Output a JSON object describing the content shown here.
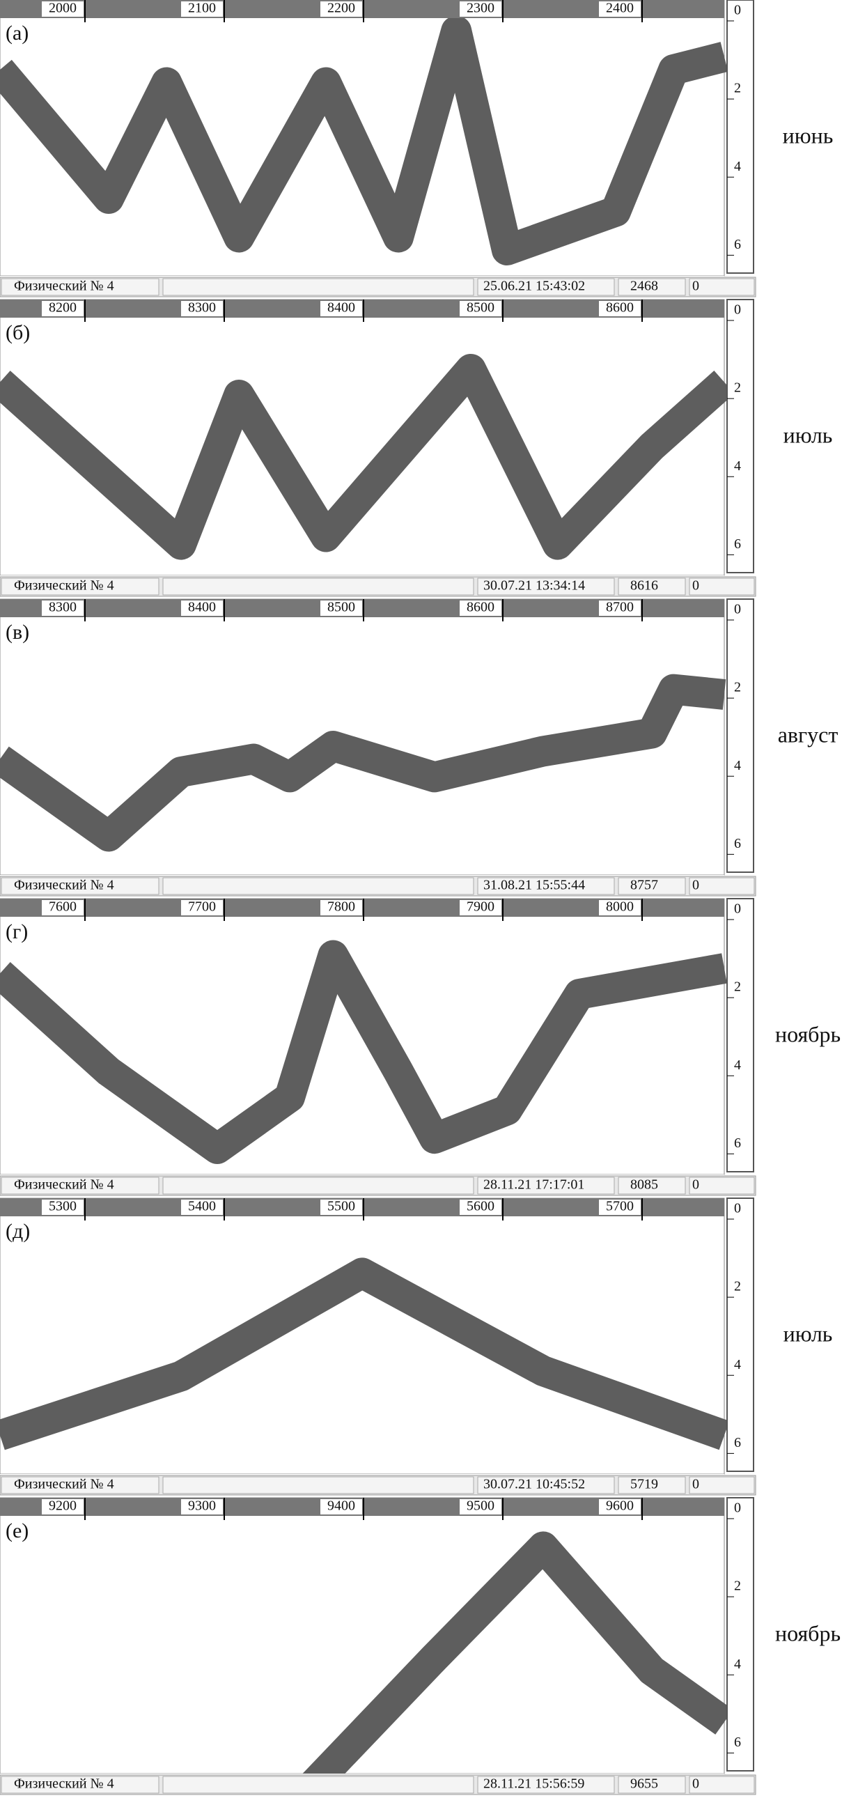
{
  "panels": [
    {
      "letter": "(а)",
      "xticks": [
        2000,
        2100,
        2200,
        2300,
        2400
      ],
      "depth_ticks": [
        0,
        2,
        4,
        6
      ],
      "month": "июнь",
      "status": {
        "label": "Физический № 4",
        "datetime": "25.06.21 15:43:02",
        "count": 2468,
        "extra": 0
      }
    },
    {
      "letter": "(б)",
      "xticks": [
        8200,
        8300,
        8400,
        8500,
        8600
      ],
      "depth_ticks": [
        0,
        2,
        4,
        6
      ],
      "month": "июль",
      "status": {
        "label": "Физический № 4",
        "datetime": "30.07.21 13:34:14",
        "count": 8616,
        "extra": 0
      }
    },
    {
      "letter": "(в)",
      "xticks": [
        8300,
        8400,
        8500,
        8600,
        8700
      ],
      "depth_ticks": [
        0,
        2,
        4,
        6
      ],
      "month": "август",
      "status": {
        "label": "Физический № 4",
        "datetime": "31.08.21 15:55:44",
        "count": 8757,
        "extra": 0
      }
    },
    {
      "letter": "(г)",
      "xticks": [
        7600,
        7700,
        7800,
        7900,
        8000
      ],
      "depth_ticks": [
        0,
        2,
        4,
        6
      ],
      "month": "ноябрь",
      "status": {
        "label": "Физический № 4",
        "datetime": "28.11.21 17:17:01",
        "count": 8085,
        "extra": 0
      }
    },
    {
      "letter": "(д)",
      "xticks": [
        5300,
        5400,
        5500,
        5600,
        5700
      ],
      "depth_ticks": [
        0,
        2,
        4,
        6
      ],
      "month": "июль",
      "status": {
        "label": "Физический № 4",
        "datetime": "30.07.21 10:45:52",
        "count": 5719,
        "extra": 0
      }
    },
    {
      "letter": "(е)",
      "xticks": [
        9200,
        9300,
        9400,
        9500,
        9600
      ],
      "depth_ticks": [
        0,
        2,
        4,
        6
      ],
      "month": "ноябрь",
      "status": {
        "label": "Физический № 4",
        "datetime": "28.11.21 15:56:59",
        "count": 9655,
        "extra": 0
      }
    }
  ]
}
